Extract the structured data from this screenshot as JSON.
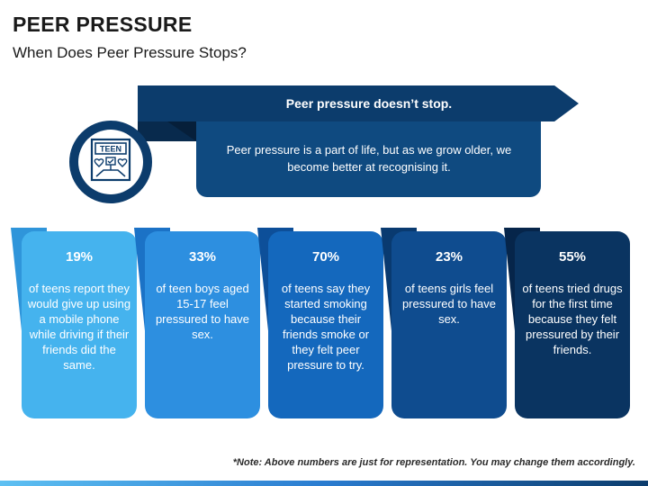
{
  "header": {
    "title": "PEER PRESSURE",
    "subtitle": "When Does Peer Pressure Stops?"
  },
  "banner": {
    "heading": "Peer pressure doesn’t stop.",
    "description": "Peer pressure is a part of life, but as we grow older, we become better at recognising it.",
    "icon": "teen-icon",
    "icon_label": "TEEN"
  },
  "cards": [
    {
      "percent": "19%",
      "text": "of teens report they would give up using a mobile phone while driving if their friends did the same.",
      "color": "#45b3ee",
      "tab_color": "#2f95da"
    },
    {
      "percent": "33%",
      "text": "of teen boys aged 15-17 feel pressured to have sex.",
      "color": "#2d8fe0",
      "tab_color": "#1b72c6"
    },
    {
      "percent": "70%",
      "text": "of teens say they started smoking because their friends smoke or they felt peer pressure to try.",
      "color": "#1468bd",
      "tab_color": "#0d4f99"
    },
    {
      "percent": "23%",
      "text": "of teens girls feel pressured to have sex.",
      "color": "#0f4c8f",
      "tab_color": "#093a70"
    },
    {
      "percent": "55%",
      "text": "of teens tried drugs for the first time because they felt pressured by their friends.",
      "color": "#0a3461",
      "tab_color": "#06254a"
    }
  ],
  "note": "*Note: Above numbers are just for representation. You may change them accordingly."
}
